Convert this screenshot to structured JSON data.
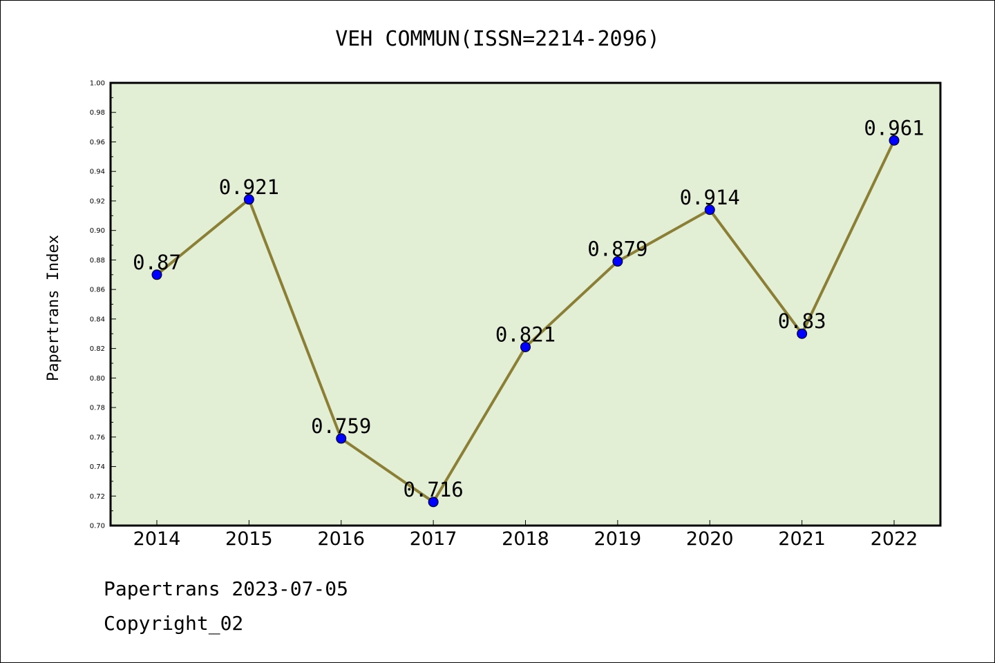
{
  "chart_data": {
    "type": "line",
    "title": "VEH COMMUN(ISSN=2214-2096)",
    "xlabel": "",
    "ylabel": "Papertrans Index",
    "categories": [
      "2014",
      "2015",
      "2016",
      "2017",
      "2018",
      "2019",
      "2020",
      "2021",
      "2022"
    ],
    "series": [
      {
        "values": [
          0.87,
          0.921,
          0.759,
          0.716,
          0.821,
          0.879,
          0.914,
          0.83,
          0.961
        ],
        "labels": [
          "0.87",
          "0.921",
          "0.759",
          "0.716",
          "0.821",
          "0.879",
          "0.914",
          "0.83",
          "0.961"
        ]
      }
    ],
    "ylim": [
      0.7,
      1.0
    ],
    "yticks": [
      "0.70",
      "0.72",
      "0.74",
      "0.76",
      "0.78",
      "0.80",
      "0.82",
      "0.84",
      "0.86",
      "0.88",
      "0.90",
      "0.92",
      "0.94",
      "0.96",
      "0.98",
      "1.00"
    ],
    "grid": false,
    "legend": "none",
    "colors": {
      "plot_background": "#e2efd5",
      "line": "#8b7f35",
      "marker": "#0000ff"
    }
  },
  "footer": {
    "line1": "Papertrans 2023-07-05",
    "line2": "Copyright_02"
  }
}
